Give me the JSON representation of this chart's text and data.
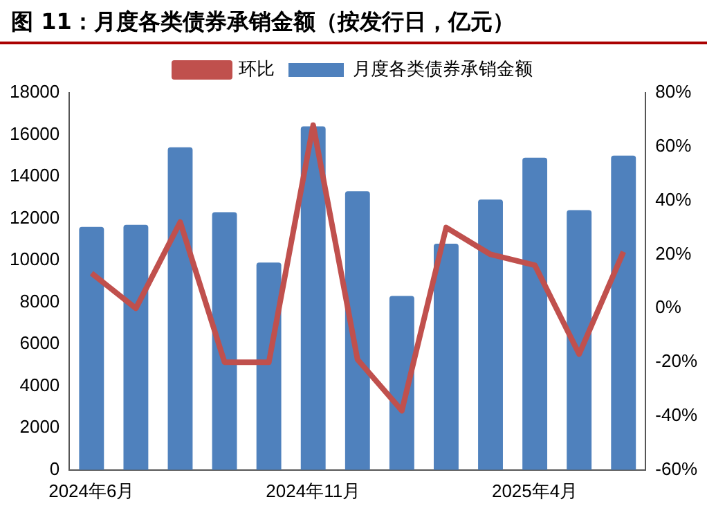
{
  "chart_data": {
    "type": "bar",
    "title": "图 11：月度各类债券承销金额（按发行日，亿元）",
    "categories": [
      "2024年6月",
      null,
      null,
      null,
      null,
      "2024年11月",
      null,
      null,
      null,
      null,
      "2025年4月",
      null,
      null
    ],
    "series": [
      {
        "name": "月度各类债券承销金额",
        "color": "#4f81bd",
        "values": [
          11600,
          11700,
          15400,
          12300,
          9900,
          16400,
          13300,
          8300,
          10800,
          12900,
          14900,
          12400,
          15000
        ]
      },
      {
        "name": "环比",
        "type": "line",
        "axis": "y2",
        "color": "#c0504d",
        "values": [
          13,
          0,
          32,
          -20,
          -20,
          68,
          -19,
          -38,
          30,
          20,
          16,
          -17,
          21
        ]
      }
    ],
    "ylim": [
      0,
      18000
    ],
    "yticks": [
      0,
      2000,
      4000,
      6000,
      8000,
      10000,
      12000,
      14000,
      16000,
      18000
    ],
    "y2lim": [
      -60,
      80
    ],
    "y2ticks": [
      {
        "value": -60,
        "label": "-60%"
      },
      {
        "value": -40,
        "label": "-40%"
      },
      {
        "value": -20,
        "label": "-20%"
      },
      {
        "value": 0,
        "label": "0%"
      },
      {
        "value": 20,
        "label": "20%"
      },
      {
        "value": 40,
        "label": "40%"
      },
      {
        "value": 60,
        "label": "60%"
      },
      {
        "value": 80,
        "label": "80%"
      }
    ],
    "grid": false,
    "legend": "top",
    "marker": "none"
  }
}
